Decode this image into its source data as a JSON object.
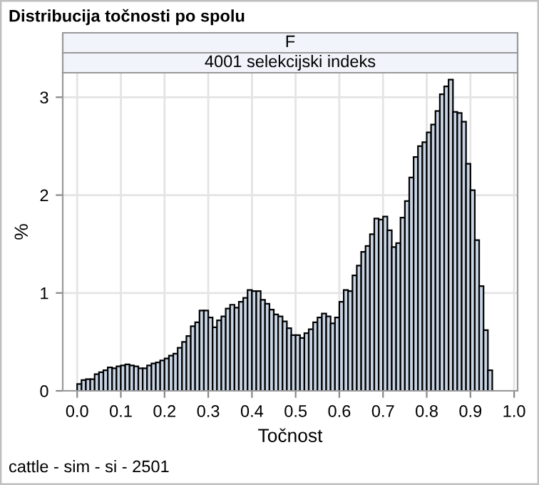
{
  "chart_data": {
    "type": "histogram",
    "title": "Distribucija točnosti po spolu",
    "subtitle": "F",
    "annotations": [
      "4001 selekcijski indeks",
      "cattle - sim - si - 2501"
    ],
    "xlabel": "Točnost",
    "ylabel": "%",
    "bins": [
      0.0,
      0.01,
      0.02,
      0.03,
      0.04,
      0.05,
      0.06,
      0.07,
      0.08,
      0.09,
      0.1,
      0.11,
      0.12,
      0.13,
      0.14,
      0.15,
      0.16,
      0.17,
      0.18,
      0.19,
      0.2,
      0.21,
      0.22,
      0.23,
      0.24,
      0.25,
      0.26,
      0.27,
      0.28,
      0.29,
      0.3,
      0.31,
      0.32,
      0.33,
      0.34,
      0.35,
      0.36,
      0.37,
      0.38,
      0.39,
      0.4,
      0.41,
      0.42,
      0.43,
      0.44,
      0.45,
      0.46,
      0.47,
      0.48,
      0.49,
      0.5,
      0.51,
      0.52,
      0.53,
      0.54,
      0.55,
      0.56,
      0.57,
      0.58,
      0.59,
      0.6,
      0.61,
      0.62,
      0.63,
      0.64,
      0.65,
      0.66,
      0.67,
      0.68,
      0.69,
      0.7,
      0.71,
      0.72,
      0.73,
      0.74,
      0.75,
      0.76,
      0.77,
      0.78,
      0.79,
      0.8,
      0.81,
      0.82,
      0.83,
      0.84,
      0.85,
      0.86,
      0.87,
      0.88,
      0.89,
      0.9,
      0.91,
      0.92,
      0.93,
      0.94,
      0.95,
      0.96,
      0.97,
      0.98,
      0.99
    ],
    "values": [
      0.07,
      0.11,
      0.12,
      0.12,
      0.17,
      0.19,
      0.21,
      0.24,
      0.23,
      0.25,
      0.26,
      0.27,
      0.26,
      0.25,
      0.23,
      0.23,
      0.26,
      0.28,
      0.29,
      0.31,
      0.33,
      0.36,
      0.38,
      0.44,
      0.5,
      0.56,
      0.66,
      0.7,
      0.82,
      0.82,
      0.75,
      0.65,
      0.72,
      0.76,
      0.84,
      0.88,
      0.85,
      0.91,
      0.95,
      1.03,
      1.02,
      1.02,
      0.93,
      0.89,
      0.83,
      0.78,
      0.76,
      0.71,
      0.64,
      0.57,
      0.57,
      0.54,
      0.59,
      0.63,
      0.7,
      0.75,
      0.79,
      0.76,
      0.69,
      0.75,
      0.91,
      1.03,
      1.02,
      1.18,
      1.28,
      1.42,
      1.48,
      1.6,
      1.76,
      1.75,
      1.78,
      1.64,
      1.47,
      1.51,
      1.77,
      1.94,
      2.18,
      2.39,
      2.5,
      2.54,
      2.64,
      2.72,
      2.86,
      3.03,
      3.11,
      3.18,
      2.85,
      2.84,
      2.75,
      2.32,
      2.05,
      1.54,
      1.07,
      0.62,
      0.21,
      null,
      null,
      null,
      null
    ],
    "color": "#c8d4e3",
    "xlim": [
      -0.033,
      1.008
    ],
    "ylim": [
      0,
      3.25
    ],
    "xticks": [
      {
        "value": 0,
        "label": "0.0"
      },
      0.1,
      0.2,
      0.3,
      0.4,
      0.5,
      0.6,
      0.7,
      0.8,
      0.9,
      {
        "value": 1,
        "label": "1.0"
      }
    ],
    "yticks": [
      0,
      1,
      2,
      3
    ],
    "grid": true
  }
}
